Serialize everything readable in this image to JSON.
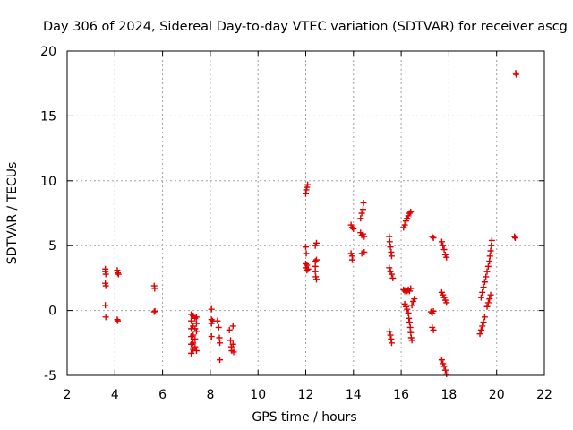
{
  "chart_data": {
    "type": "scatter",
    "title": "Day 306 of 2024, Sidereal Day-to-day VTEC variation (SDTVAR) for receiver ascg",
    "xlabel": "GPS time / hours",
    "ylabel": "SDTVAR / TECUs",
    "xlim": [
      2,
      22
    ],
    "ylim": [
      -5,
      20
    ],
    "xticks": [
      2,
      4,
      6,
      8,
      10,
      12,
      14,
      16,
      18,
      20,
      22
    ],
    "yticks": [
      -5,
      0,
      5,
      10,
      15,
      20
    ],
    "xtick_labels": [
      "2",
      "4",
      "6",
      "8",
      "10",
      "12",
      "14",
      "16",
      "18",
      "20",
      "22"
    ],
    "ytick_labels": [
      "-5",
      "0",
      "5",
      "10",
      "15",
      "20"
    ],
    "grid": true,
    "marker": "+",
    "color": "#e00000",
    "points": [
      [
        3.6,
        3.2
      ],
      [
        3.6,
        3.0
      ],
      [
        3.62,
        2.8
      ],
      [
        3.6,
        2.1
      ],
      [
        3.62,
        1.9
      ],
      [
        3.6,
        0.4
      ],
      [
        3.62,
        -0.5
      ],
      [
        4.1,
        3.1
      ],
      [
        4.12,
        2.9
      ],
      [
        4.15,
        2.8
      ],
      [
        4.1,
        -0.7
      ],
      [
        4.12,
        -0.8
      ],
      [
        5.65,
        1.9
      ],
      [
        5.67,
        1.7
      ],
      [
        5.65,
        -0.1
      ],
      [
        5.68,
        -0.05
      ],
      [
        7.2,
        -0.3
      ],
      [
        7.2,
        -0.8
      ],
      [
        7.2,
        -1.4
      ],
      [
        7.2,
        -2.0
      ],
      [
        7.2,
        -2.6
      ],
      [
        7.2,
        -3.3
      ],
      [
        7.28,
        -0.4
      ],
      [
        7.28,
        -1.2
      ],
      [
        7.28,
        -1.9
      ],
      [
        7.28,
        -2.5
      ],
      [
        7.28,
        -3.0
      ],
      [
        7.36,
        -0.6
      ],
      [
        7.36,
        -1.4
      ],
      [
        7.36,
        -2.2
      ],
      [
        7.36,
        -2.8
      ],
      [
        7.42,
        -0.5
      ],
      [
        7.42,
        -1.0
      ],
      [
        7.42,
        -1.6
      ],
      [
        7.42,
        -3.1
      ],
      [
        8.05,
        0.1
      ],
      [
        8.05,
        -0.7
      ],
      [
        8.05,
        -1.0
      ],
      [
        8.05,
        -2.0
      ],
      [
        8.1,
        -0.8
      ],
      [
        8.3,
        -0.8
      ],
      [
        8.35,
        -1.3
      ],
      [
        8.38,
        -2.1
      ],
      [
        8.4,
        -2.5
      ],
      [
        8.4,
        -3.8
      ],
      [
        8.8,
        -1.5
      ],
      [
        8.85,
        -2.3
      ],
      [
        8.88,
        -2.8
      ],
      [
        8.9,
        -3.1
      ],
      [
        8.95,
        -1.2
      ],
      [
        8.95,
        -2.6
      ],
      [
        8.98,
        -3.2
      ],
      [
        12.0,
        9.0
      ],
      [
        12.02,
        9.3
      ],
      [
        12.05,
        9.5
      ],
      [
        12.08,
        9.7
      ],
      [
        12.0,
        4.9
      ],
      [
        12.02,
        4.4
      ],
      [
        12.0,
        3.6
      ],
      [
        12.0,
        3.3
      ],
      [
        12.05,
        3.1
      ],
      [
        12.05,
        3.5
      ],
      [
        12.1,
        3.2
      ],
      [
        12.4,
        5.0
      ],
      [
        12.45,
        5.2
      ],
      [
        12.4,
        3.8
      ],
      [
        12.4,
        3.4
      ],
      [
        12.4,
        3.0
      ],
      [
        12.45,
        3.9
      ],
      [
        12.42,
        2.6
      ],
      [
        12.45,
        2.4
      ],
      [
        13.9,
        6.6
      ],
      [
        13.95,
        6.4
      ],
      [
        14.0,
        6.3
      ],
      [
        13.9,
        4.4
      ],
      [
        13.95,
        4.2
      ],
      [
        13.95,
        3.9
      ],
      [
        14.3,
        7.1
      ],
      [
        14.3,
        6.0
      ],
      [
        14.35,
        5.8
      ],
      [
        14.35,
        7.5
      ],
      [
        14.4,
        7.8
      ],
      [
        14.42,
        8.3
      ],
      [
        14.35,
        4.4
      ],
      [
        14.4,
        5.9
      ],
      [
        14.45,
        5.7
      ],
      [
        14.45,
        4.5
      ],
      [
        15.5,
        5.7
      ],
      [
        15.52,
        5.3
      ],
      [
        15.55,
        4.9
      ],
      [
        15.58,
        4.5
      ],
      [
        15.6,
        4.2
      ],
      [
        15.5,
        3.3
      ],
      [
        15.55,
        3.0
      ],
      [
        15.6,
        2.8
      ],
      [
        15.65,
        2.5
      ],
      [
        15.5,
        -1.6
      ],
      [
        15.55,
        -1.9
      ],
      [
        15.58,
        -2.2
      ],
      [
        15.6,
        -2.5
      ],
      [
        16.1,
        6.4
      ],
      [
        16.15,
        6.6
      ],
      [
        16.2,
        6.9
      ],
      [
        16.25,
        7.1
      ],
      [
        16.3,
        7.3
      ],
      [
        16.35,
        7.5
      ],
      [
        16.4,
        7.6
      ],
      [
        16.1,
        1.6
      ],
      [
        16.15,
        1.5
      ],
      [
        16.2,
        1.6
      ],
      [
        16.25,
        1.5
      ],
      [
        16.3,
        1.6
      ],
      [
        16.35,
        1.5
      ],
      [
        16.4,
        1.7
      ],
      [
        16.15,
        0.5
      ],
      [
        16.2,
        0.3
      ],
      [
        16.25,
        0.1
      ],
      [
        16.3,
        -0.2
      ],
      [
        16.32,
        -0.6
      ],
      [
        16.35,
        -0.9
      ],
      [
        16.38,
        -1.3
      ],
      [
        16.4,
        -1.7
      ],
      [
        16.42,
        -2.1
      ],
      [
        16.45,
        -2.3
      ],
      [
        16.45,
        0.4
      ],
      [
        16.5,
        0.7
      ],
      [
        16.55,
        0.9
      ],
      [
        17.3,
        5.7
      ],
      [
        17.35,
        5.6
      ],
      [
        17.25,
        -0.1
      ],
      [
        17.3,
        -0.2
      ],
      [
        17.35,
        -0.05
      ],
      [
        17.3,
        -1.3
      ],
      [
        17.35,
        -1.5
      ],
      [
        17.7,
        5.3
      ],
      [
        17.75,
        5.0
      ],
      [
        17.8,
        4.7
      ],
      [
        17.85,
        4.3
      ],
      [
        17.9,
        4.1
      ],
      [
        17.7,
        1.4
      ],
      [
        17.75,
        1.2
      ],
      [
        17.8,
        1.0
      ],
      [
        17.85,
        0.8
      ],
      [
        17.9,
        0.6
      ],
      [
        17.7,
        -3.8
      ],
      [
        17.75,
        -4.1
      ],
      [
        17.8,
        -4.3
      ],
      [
        17.85,
        -4.6
      ],
      [
        17.9,
        -4.9
      ],
      [
        19.3,
        -1.8
      ],
      [
        19.35,
        -1.5
      ],
      [
        19.4,
        -1.2
      ],
      [
        19.45,
        -0.9
      ],
      [
        19.5,
        -0.5
      ],
      [
        19.35,
        1.0
      ],
      [
        19.4,
        1.4
      ],
      [
        19.45,
        1.8
      ],
      [
        19.5,
        2.2
      ],
      [
        19.55,
        2.6
      ],
      [
        19.6,
        3.0
      ],
      [
        19.65,
        3.4
      ],
      [
        19.7,
        3.8
      ],
      [
        19.72,
        4.2
      ],
      [
        19.75,
        4.6
      ],
      [
        19.78,
        5.0
      ],
      [
        19.8,
        5.4
      ],
      [
        19.6,
        0.3
      ],
      [
        19.65,
        0.6
      ],
      [
        19.7,
        0.9
      ],
      [
        19.75,
        1.2
      ],
      [
        20.75,
        5.7
      ],
      [
        20.78,
        5.6
      ],
      [
        20.8,
        18.3
      ],
      [
        20.82,
        18.2
      ]
    ]
  }
}
